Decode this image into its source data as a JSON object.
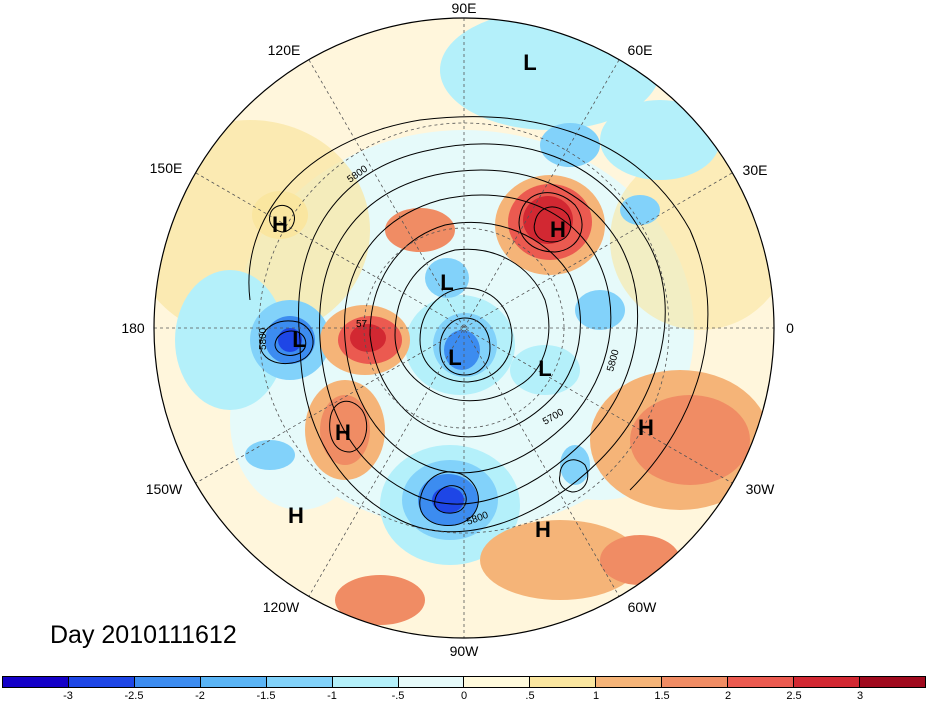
{
  "title": "Day 2010111612",
  "longitude_labels": [
    "90E",
    "60E",
    "30E",
    "0",
    "30W",
    "60W",
    "90W",
    "120W",
    "150W",
    "180",
    "150E",
    "120E"
  ],
  "pressure_centers": [
    {
      "type": "L",
      "lon": "90E–80E area",
      "label": "L"
    },
    {
      "type": "H",
      "label": "H"
    },
    {
      "type": "H",
      "label": "H"
    },
    {
      "type": "L",
      "label": "L"
    },
    {
      "type": "L",
      "label": "L"
    },
    {
      "type": "L",
      "label": "L"
    },
    {
      "type": "L",
      "label": "L"
    },
    {
      "type": "H",
      "label": "H"
    },
    {
      "type": "H",
      "label": "H"
    },
    {
      "type": "H",
      "label": "H"
    },
    {
      "type": "H",
      "label": "H"
    }
  ],
  "contour_labels": [
    "5800",
    "5800",
    "5700",
    "5800",
    "5800",
    "57"
  ],
  "colorbar": {
    "colors": [
      "#1400c8",
      "#1e46e6",
      "#3c8cf0",
      "#5ab4f5",
      "#82d2fa",
      "#b4f0fa",
      "#e6fafa",
      "#fffadc",
      "#fae6a0",
      "#f5b478",
      "#f08c64",
      "#eb5a50",
      "#d22832",
      "#a00a1e"
    ],
    "labels": [
      "-3",
      "-2.5",
      "-2",
      "-1.5",
      "-1",
      "-.5",
      "0",
      ".5",
      "1",
      "1.5",
      "2",
      "2.5",
      "3"
    ]
  }
}
